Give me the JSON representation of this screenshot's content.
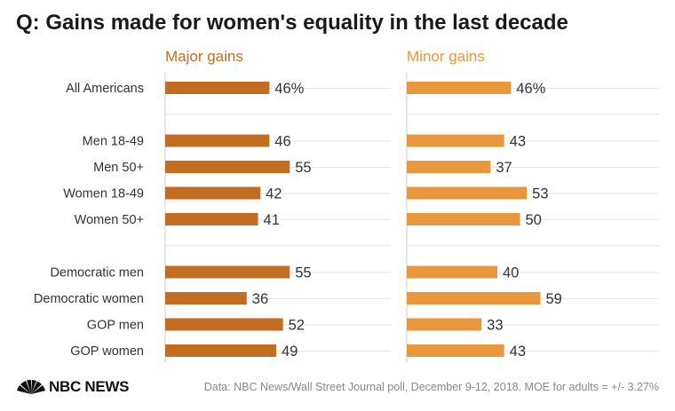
{
  "title": "Q: Gains made for women's equality in the last decade",
  "source": "Data: NBC News/Wall Street Journal poll, December 9-12, 2018. MOE for adults = +/- 3.27%",
  "logo_text": "NBC NEWS",
  "logo_icon": "peacock-icon",
  "colors": {
    "major": "#c36d22",
    "minor": "#e9973d",
    "grid": "#e6e6e6",
    "axis": "#cccccc"
  },
  "chart_data": {
    "type": "bar",
    "orientation": "horizontal",
    "categories": [
      "All Americans",
      "Men 18-49",
      "Men 50+",
      "Women 18-49",
      "Women 50+",
      "Democratic men",
      "Democratic women",
      "GOP men",
      "GOP women"
    ],
    "groups": [
      [
        0
      ],
      [
        1,
        2,
        3,
        4
      ],
      [
        5,
        6,
        7,
        8
      ]
    ],
    "series": [
      {
        "name": "Major gains",
        "values": [
          46,
          46,
          55,
          42,
          41,
          55,
          36,
          52,
          49
        ],
        "labels": [
          "46%",
          "46",
          "55",
          "42",
          "41",
          "55",
          "36",
          "52",
          "49"
        ]
      },
      {
        "name": "Minor gains",
        "values": [
          46,
          43,
          37,
          53,
          50,
          40,
          59,
          33,
          43
        ],
        "labels": [
          "46%",
          "43",
          "37",
          "53",
          "50",
          "40",
          "59",
          "33",
          "43"
        ]
      }
    ],
    "xlim": [
      0,
      100
    ],
    "grid": true,
    "legend": "panel titles"
  }
}
